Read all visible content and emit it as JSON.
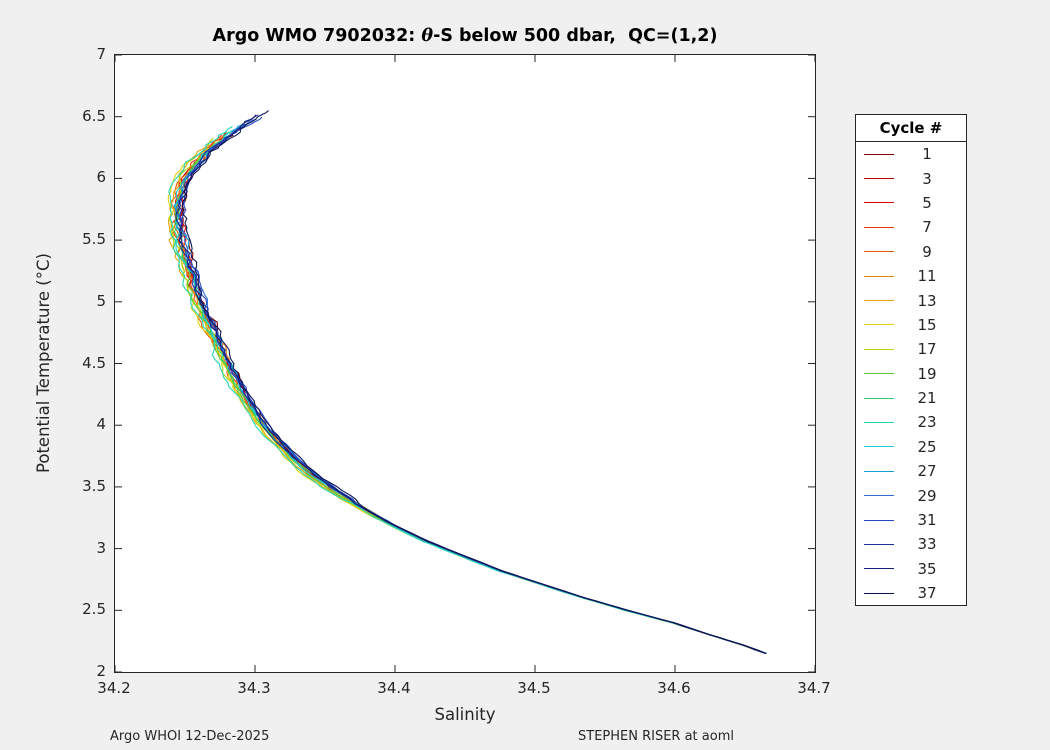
{
  "figure": {
    "title_prefix": "Argo WMO 7902032: ",
    "title_theta": "θ",
    "title_suffix": "-S below 500 dbar,  QC=(1,2)",
    "footer_left": "Argo WHOI 12-Dec-2025",
    "footer_right": "STEPHEN RISER at aoml"
  },
  "chart_data": {
    "type": "line",
    "title": "Argo WMO 7902032: θ-S below 500 dbar, QC=(1,2)",
    "xlabel": "Salinity",
    "ylabel": "Potential Temperature (°C)",
    "xlim": [
      34.2,
      34.7
    ],
    "ylim": [
      2,
      7
    ],
    "x_ticks": [
      "34.2",
      "34.3",
      "34.4",
      "34.5",
      "34.6",
      "34.7"
    ],
    "y_ticks": [
      "2",
      "2.5",
      "3",
      "3.5",
      "4",
      "4.5",
      "5",
      "5.5",
      "6",
      "6.5",
      "7"
    ],
    "grid": false,
    "legend_title": "Cycle #",
    "legend_position": "right-outside",
    "description": "Theta-S curves below 500 dbar for Argo float 7902032; all cycles follow one tight curve from (S=34.665, theta=2.15) at bottom right, up-left to a salinity minimum near (34.243, 5.6), then back right to a top near (34.30, 6.3-6.55). Colors run dark red (cycle 1) through orange, yellow, green, cyan to dark navy (cycle 37).",
    "base_curve": [
      [
        34.665,
        2.15
      ],
      [
        34.648,
        2.22
      ],
      [
        34.625,
        2.3
      ],
      [
        34.598,
        2.4
      ],
      [
        34.565,
        2.5
      ],
      [
        34.535,
        2.6
      ],
      [
        34.505,
        2.71
      ],
      [
        34.475,
        2.82
      ],
      [
        34.448,
        2.94
      ],
      [
        34.422,
        3.06
      ],
      [
        34.398,
        3.19
      ],
      [
        34.376,
        3.33
      ],
      [
        34.356,
        3.47
      ],
      [
        34.34,
        3.6
      ],
      [
        34.326,
        3.74
      ],
      [
        34.314,
        3.88
      ],
      [
        34.304,
        4.02
      ],
      [
        34.296,
        4.16
      ],
      [
        34.288,
        4.31
      ],
      [
        34.281,
        4.46
      ],
      [
        34.275,
        4.61
      ],
      [
        34.269,
        4.76
      ],
      [
        34.263,
        4.91
      ],
      [
        34.258,
        5.06
      ],
      [
        34.253,
        5.21
      ],
      [
        34.249,
        5.36
      ],
      [
        34.246,
        5.5
      ],
      [
        34.244,
        5.64
      ],
      [
        34.244,
        5.78
      ],
      [
        34.247,
        5.93
      ],
      [
        34.253,
        6.07
      ],
      [
        34.262,
        6.19
      ],
      [
        34.273,
        6.3
      ],
      [
        34.285,
        6.4
      ],
      [
        34.296,
        6.48
      ],
      [
        34.305,
        6.55
      ]
    ],
    "series": [
      {
        "name": "1",
        "color": "#800000",
        "s_offset": 0.003,
        "theta_max": 6.36
      },
      {
        "name": "3",
        "color": "#b40000",
        "s_offset": 0.001,
        "theta_max": 6.38
      },
      {
        "name": "5",
        "color": "#d80000",
        "s_offset": 0.002,
        "theta_max": 6.34
      },
      {
        "name": "7",
        "color": "#e83210",
        "s_offset": 0.0,
        "theta_max": 6.36
      },
      {
        "name": "9",
        "color": "#e85a0c",
        "s_offset": -0.001,
        "theta_max": 6.33
      },
      {
        "name": "11",
        "color": "#e0820f",
        "s_offset": 0.001,
        "theta_max": 6.35
      },
      {
        "name": "13",
        "color": "#e2a70e",
        "s_offset": -0.003,
        "theta_max": 6.31
      },
      {
        "name": "15",
        "color": "#e3d00b",
        "s_offset": -0.004,
        "theta_max": 6.29
      },
      {
        "name": "17",
        "color": "#b4d813",
        "s_offset": -0.002,
        "theta_max": 6.33
      },
      {
        "name": "19",
        "color": "#62c936",
        "s_offset": -0.001,
        "theta_max": 6.38
      },
      {
        "name": "21",
        "color": "#2bd06e",
        "s_offset": 0.0,
        "theta_max": 6.4
      },
      {
        "name": "23",
        "color": "#20d6b4",
        "s_offset": -0.005,
        "theta_max": 6.42
      },
      {
        "name": "25",
        "color": "#22cbdd",
        "s_offset": 0.001,
        "theta_max": 6.44
      },
      {
        "name": "27",
        "color": "#189ed0",
        "s_offset": 0.002,
        "theta_max": 6.46
      },
      {
        "name": "29",
        "color": "#2e6fd8",
        "s_offset": 0.003,
        "theta_max": 6.48
      },
      {
        "name": "31",
        "color": "#2548c0",
        "s_offset": 0.004,
        "theta_max": 6.5
      },
      {
        "name": "33",
        "color": "#1c2f9e",
        "s_offset": 0.002,
        "theta_max": 6.52
      },
      {
        "name": "35",
        "color": "#141f78",
        "s_offset": 0.003,
        "theta_max": 6.53
      },
      {
        "name": "37",
        "color": "#0c1454",
        "s_offset": 0.005,
        "theta_max": 6.55
      }
    ]
  }
}
